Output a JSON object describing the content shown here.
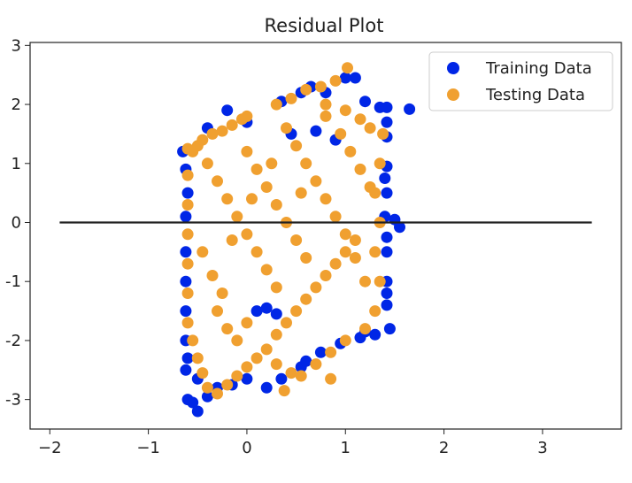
{
  "chart_data": {
    "type": "scatter",
    "title": "Residual Plot",
    "xlabel": "",
    "ylabel": "",
    "xlim": [
      -2.2,
      3.8
    ],
    "ylim": [
      -3.5,
      3.05
    ],
    "xticks": [
      -2,
      -1,
      0,
      1,
      2,
      3
    ],
    "xtick_labels": [
      "−2",
      "−1",
      "0",
      "1",
      "2",
      "3"
    ],
    "yticks": [
      -3,
      -2,
      -1,
      0,
      1,
      2,
      3
    ],
    "ytick_labels": [
      "-3",
      "-2",
      "-1",
      "0",
      "1",
      "2",
      "3"
    ],
    "grid": false,
    "legend_placement": "top-right",
    "series": [
      {
        "name": "Training Data",
        "color": "#0026e6",
        "points": [
          [
            -0.65,
            1.2
          ],
          [
            -0.6,
            0.5
          ],
          [
            -0.62,
            -0.5
          ],
          [
            -0.6,
            -2.3
          ],
          [
            -0.62,
            -2.5
          ],
          [
            -0.6,
            -3.0
          ],
          [
            -0.55,
            -3.05
          ],
          [
            -0.5,
            -3.2
          ],
          [
            -0.4,
            -2.95
          ],
          [
            -0.3,
            -2.8
          ],
          [
            -0.15,
            -2.75
          ],
          [
            0.0,
            -2.65
          ],
          [
            0.2,
            -2.8
          ],
          [
            0.3,
            -1.55
          ],
          [
            0.2,
            -1.45
          ],
          [
            0.35,
            2.05
          ],
          [
            0.55,
            2.2
          ],
          [
            0.65,
            2.3
          ],
          [
            0.8,
            2.2
          ],
          [
            1.0,
            2.45
          ],
          [
            1.1,
            2.45
          ],
          [
            1.2,
            2.05
          ],
          [
            1.35,
            1.95
          ],
          [
            1.42,
            1.95
          ],
          [
            1.65,
            1.92
          ],
          [
            1.42,
            1.45
          ],
          [
            1.42,
            0.95
          ],
          [
            1.42,
            0.5
          ],
          [
            1.5,
            0.05
          ],
          [
            1.4,
            0.1
          ],
          [
            1.55,
            -0.08
          ],
          [
            1.42,
            -0.5
          ],
          [
            1.42,
            -1.0
          ],
          [
            1.42,
            -1.4
          ],
          [
            1.45,
            -1.8
          ],
          [
            1.3,
            -1.9
          ],
          [
            1.15,
            -1.95
          ],
          [
            0.95,
            -2.05
          ],
          [
            0.75,
            -2.2
          ],
          [
            0.55,
            -2.45
          ],
          [
            0.35,
            -2.65
          ],
          [
            0.45,
            1.5
          ],
          [
            0.7,
            1.55
          ],
          [
            0.9,
            1.4
          ],
          [
            0.1,
            -1.5
          ],
          [
            -0.2,
            1.9
          ],
          [
            0.0,
            1.7
          ],
          [
            -0.4,
            1.6
          ],
          [
            -0.62,
            0.9
          ],
          [
            -0.62,
            0.1
          ],
          [
            -0.62,
            -1.0
          ],
          [
            -0.62,
            -1.5
          ],
          [
            -0.62,
            -2.0
          ],
          [
            1.42,
            1.7
          ],
          [
            1.4,
            0.75
          ],
          [
            1.42,
            -0.25
          ],
          [
            1.42,
            -1.2
          ],
          [
            1.2,
            -1.85
          ],
          [
            0.6,
            -2.35
          ],
          [
            -0.5,
            -2.65
          ]
        ]
      },
      {
        "name": "Testing Data",
        "color": "#f0a030",
        "points": [
          [
            -0.6,
            1.25
          ],
          [
            -0.55,
            1.2
          ],
          [
            -0.5,
            1.3
          ],
          [
            -0.45,
            1.4
          ],
          [
            -0.35,
            1.5
          ],
          [
            -0.25,
            1.55
          ],
          [
            -0.15,
            1.65
          ],
          [
            -0.05,
            1.75
          ],
          [
            0.0,
            1.8
          ],
          [
            0.3,
            2.0
          ],
          [
            0.45,
            2.1
          ],
          [
            0.6,
            2.25
          ],
          [
            0.75,
            2.3
          ],
          [
            0.9,
            2.4
          ],
          [
            1.02,
            2.62
          ],
          [
            0.8,
            2.0
          ],
          [
            1.0,
            1.9
          ],
          [
            1.15,
            1.75
          ],
          [
            1.25,
            1.6
          ],
          [
            1.38,
            1.5
          ],
          [
            1.35,
            1.0
          ],
          [
            1.3,
            0.5
          ],
          [
            1.35,
            0.0
          ],
          [
            1.3,
            -0.5
          ],
          [
            1.35,
            -1.0
          ],
          [
            1.3,
            -1.5
          ],
          [
            1.2,
            -1.8
          ],
          [
            1.0,
            -2.0
          ],
          [
            0.85,
            -2.2
          ],
          [
            0.7,
            -2.4
          ],
          [
            0.55,
            -2.6
          ],
          [
            0.45,
            -2.55
          ],
          [
            0.3,
            -2.4
          ],
          [
            0.38,
            -2.85
          ],
          [
            0.85,
            -2.65
          ],
          [
            -0.6,
            0.8
          ],
          [
            -0.6,
            0.3
          ],
          [
            -0.6,
            -0.2
          ],
          [
            -0.6,
            -0.7
          ],
          [
            -0.6,
            -1.2
          ],
          [
            -0.6,
            -1.7
          ],
          [
            -0.55,
            -2.0
          ],
          [
            -0.5,
            -2.3
          ],
          [
            -0.45,
            -2.55
          ],
          [
            -0.4,
            -2.8
          ],
          [
            -0.3,
            -2.9
          ],
          [
            -0.2,
            -2.75
          ],
          [
            -0.1,
            -2.6
          ],
          [
            0.0,
            -2.45
          ],
          [
            0.1,
            -2.3
          ],
          [
            0.2,
            -2.15
          ],
          [
            0.3,
            -1.9
          ],
          [
            0.4,
            -1.7
          ],
          [
            0.5,
            -1.5
          ],
          [
            0.6,
            -1.3
          ],
          [
            0.7,
            -1.1
          ],
          [
            0.8,
            -0.9
          ],
          [
            0.9,
            -0.7
          ],
          [
            1.0,
            -0.5
          ],
          [
            1.1,
            -0.3
          ],
          [
            -0.4,
            1.0
          ],
          [
            -0.3,
            0.7
          ],
          [
            -0.2,
            0.4
          ],
          [
            -0.1,
            0.1
          ],
          [
            0.0,
            -0.2
          ],
          [
            0.1,
            -0.5
          ],
          [
            0.2,
            -0.8
          ],
          [
            0.3,
            -1.1
          ],
          [
            0.0,
            1.2
          ],
          [
            0.1,
            0.9
          ],
          [
            0.2,
            0.6
          ],
          [
            0.3,
            0.3
          ],
          [
            0.4,
            0.0
          ],
          [
            0.5,
            -0.3
          ],
          [
            0.6,
            -0.6
          ],
          [
            0.4,
            1.6
          ],
          [
            0.5,
            1.3
          ],
          [
            0.6,
            1.0
          ],
          [
            0.7,
            0.7
          ],
          [
            0.8,
            0.4
          ],
          [
            0.9,
            0.1
          ],
          [
            1.0,
            -0.2
          ],
          [
            1.1,
            -0.6
          ],
          [
            1.2,
            -1.0
          ],
          [
            0.8,
            1.8
          ],
          [
            0.95,
            1.5
          ],
          [
            1.05,
            1.2
          ],
          [
            1.15,
            0.9
          ],
          [
            1.25,
            0.6
          ],
          [
            -0.3,
            -1.5
          ],
          [
            -0.2,
            -1.8
          ],
          [
            -0.1,
            -2.0
          ],
          [
            0.0,
            -1.7
          ],
          [
            -0.45,
            -0.5
          ],
          [
            -0.35,
            -0.9
          ],
          [
            -0.25,
            -1.2
          ],
          [
            -0.15,
            -0.3
          ],
          [
            0.05,
            0.4
          ],
          [
            0.25,
            1.0
          ],
          [
            0.55,
            0.5
          ]
        ]
      }
    ],
    "reference_line": {
      "y": 0,
      "x_range": [
        -1.9,
        3.5
      ],
      "color": "#222222"
    }
  }
}
